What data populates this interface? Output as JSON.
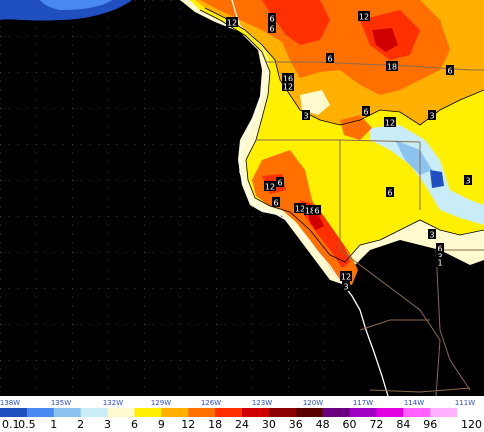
{
  "map": {
    "contour_labels": [
      "12",
      "6",
      "6",
      "12",
      "16",
      "12",
      "6",
      "18",
      "3",
      "6",
      "12",
      "3",
      "6",
      "6",
      "3",
      "12",
      "6",
      "6",
      "12",
      "18",
      "6",
      "3",
      "6",
      "3",
      "1",
      "12",
      "3"
    ]
  },
  "longitude_axis": {
    "labels": [
      "138W",
      "135W",
      "132W",
      "129W",
      "126W",
      "123W",
      "120W",
      "117W",
      "114W",
      "111W"
    ]
  },
  "legend": {
    "values": [
      "0.1",
      "0.5",
      "1",
      "2",
      "3",
      "6",
      "9",
      "12",
      "18",
      "24",
      "30",
      "36",
      "48",
      "60",
      "72",
      "84",
      "96",
      "120"
    ],
    "colors": [
      "#2050c0",
      "#4a8af0",
      "#8cc4f0",
      "#c8ecf8",
      "#fffacd",
      "#fff000",
      "#ffb000",
      "#ff7000",
      "#ff3000",
      "#d00000",
      "#8b0000",
      "#5a0000",
      "#6a0080",
      "#a000c0",
      "#e000e0",
      "#ff60ff",
      "#ffb0ff",
      "#ffffff"
    ]
  }
}
